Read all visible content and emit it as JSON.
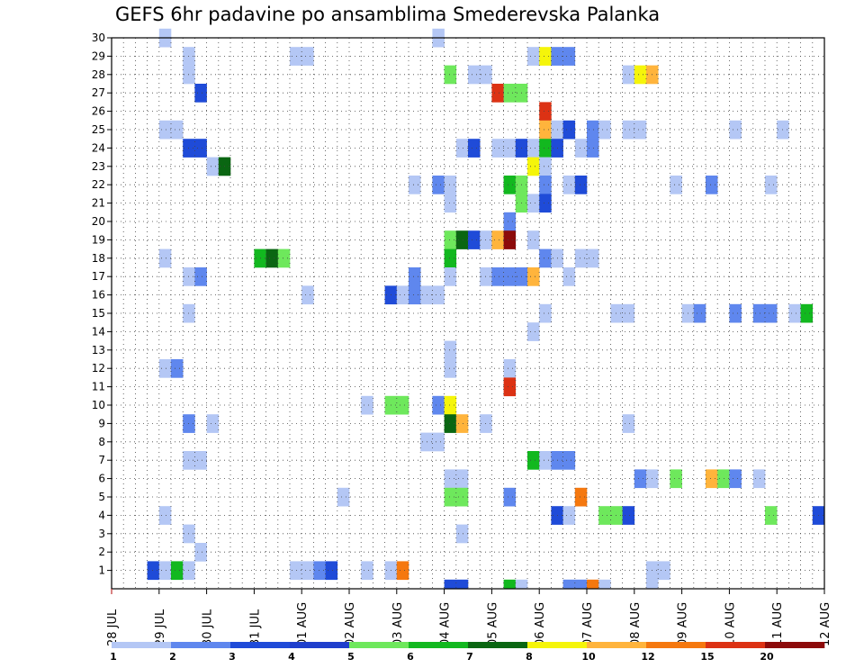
{
  "chart_data": {
    "type": "heatmap",
    "title": "GEFS 6hr padavine po ansamblima Smederevska Palanka",
    "x_ticks": [
      "28 JUL",
      "29 JUL",
      "30 JUL",
      "31 JUL",
      "01 AUG",
      "02 AUG",
      "03 AUG",
      "04 AUG",
      "05 AUG",
      "06 AUG",
      "07 AUG",
      "08 AUG",
      "09 AUG",
      "10 AUG",
      "11 AUG",
      "12 AUG"
    ],
    "y_ticks": [
      1,
      2,
      3,
      4,
      5,
      6,
      7,
      8,
      9,
      10,
      11,
      12,
      13,
      14,
      15,
      16,
      17,
      18,
      19,
      20,
      21,
      22,
      23,
      24,
      25,
      26,
      27,
      28,
      29,
      30
    ],
    "ylim": [
      0,
      30
    ],
    "x_steps": 60,
    "grid": true,
    "colorbar": {
      "labels": [
        "1",
        "2",
        "3",
        "4",
        "5",
        "6",
        "7",
        "8",
        "10",
        "12",
        "15",
        "20"
      ],
      "levels": [
        1,
        2,
        3,
        4,
        5,
        6,
        7,
        8,
        10,
        12,
        15,
        20
      ],
      "colors": [
        "#b4c7f5",
        "#5f87ee",
        "#1f4bd8",
        "#1f3fcc",
        "#6ee85c",
        "#12b81f",
        "#0a6612",
        "#f5f50a",
        "#ffb43c",
        "#f5780f",
        "#dc3214",
        "#8c0a0a"
      ]
    },
    "cells": [
      [
        4,
        30,
        1
      ],
      [
        27,
        30,
        1
      ],
      [
        6,
        29,
        1
      ],
      [
        15,
        29,
        1
      ],
      [
        16,
        29,
        1
      ],
      [
        35,
        29,
        1
      ],
      [
        36,
        29,
        8
      ],
      [
        37,
        29,
        2
      ],
      [
        38,
        29,
        2
      ],
      [
        6,
        28,
        1
      ],
      [
        28,
        28,
        5
      ],
      [
        30,
        28,
        1
      ],
      [
        31,
        28,
        1
      ],
      [
        43,
        28,
        1
      ],
      [
        44,
        28,
        8
      ],
      [
        45,
        28,
        10
      ],
      [
        7,
        27,
        3
      ],
      [
        32,
        27,
        15
      ],
      [
        33,
        27,
        5
      ],
      [
        34,
        27,
        5
      ],
      [
        36,
        26,
        15
      ],
      [
        4,
        25,
        1
      ],
      [
        5,
        25,
        1
      ],
      [
        36,
        25,
        10
      ],
      [
        37,
        25,
        1
      ],
      [
        38,
        25,
        3
      ],
      [
        40,
        25,
        2
      ],
      [
        41,
        25,
        1
      ],
      [
        43,
        25,
        1
      ],
      [
        44,
        25,
        1
      ],
      [
        52,
        25,
        1
      ],
      [
        56,
        25,
        1
      ],
      [
        6,
        24,
        3
      ],
      [
        7,
        24,
        3
      ],
      [
        29,
        24,
        1
      ],
      [
        30,
        24,
        3
      ],
      [
        32,
        24,
        1
      ],
      [
        33,
        24,
        1
      ],
      [
        34,
        24,
        3
      ],
      [
        35,
        24,
        1
      ],
      [
        36,
        24,
        6
      ],
      [
        37,
        24,
        3
      ],
      [
        39,
        24,
        1
      ],
      [
        40,
        24,
        2
      ],
      [
        8,
        23,
        1
      ],
      [
        9,
        23,
        7
      ],
      [
        35,
        23,
        8
      ],
      [
        36,
        23,
        1
      ],
      [
        25,
        22,
        1
      ],
      [
        27,
        22,
        2
      ],
      [
        28,
        22,
        1
      ],
      [
        33,
        22,
        6
      ],
      [
        34,
        22,
        5
      ],
      [
        36,
        22,
        2
      ],
      [
        38,
        22,
        1
      ],
      [
        39,
        22,
        3
      ],
      [
        47,
        22,
        1
      ],
      [
        50,
        22,
        2
      ],
      [
        55,
        22,
        1
      ],
      [
        28,
        21,
        1
      ],
      [
        34,
        21,
        5
      ],
      [
        35,
        21,
        1
      ],
      [
        36,
        21,
        3
      ],
      [
        33,
        20,
        2
      ],
      [
        28,
        19,
        5
      ],
      [
        29,
        19,
        7
      ],
      [
        30,
        19,
        3
      ],
      [
        31,
        19,
        1
      ],
      [
        32,
        19,
        10
      ],
      [
        33,
        19,
        20
      ],
      [
        35,
        19,
        1
      ],
      [
        4,
        18,
        1
      ],
      [
        12,
        18,
        6
      ],
      [
        13,
        18,
        7
      ],
      [
        14,
        18,
        5
      ],
      [
        28,
        18,
        6
      ],
      [
        36,
        18,
        2
      ],
      [
        37,
        18,
        1
      ],
      [
        39,
        18,
        1
      ],
      [
        40,
        18,
        1
      ],
      [
        6,
        17,
        1
      ],
      [
        7,
        17,
        2
      ],
      [
        25,
        17,
        2
      ],
      [
        28,
        17,
        1
      ],
      [
        31,
        17,
        1
      ],
      [
        32,
        17,
        2
      ],
      [
        33,
        17,
        2
      ],
      [
        34,
        17,
        2
      ],
      [
        35,
        17,
        10
      ],
      [
        38,
        17,
        1
      ],
      [
        16,
        16,
        1
      ],
      [
        23,
        16,
        3
      ],
      [
        24,
        16,
        1
      ],
      [
        25,
        16,
        2
      ],
      [
        26,
        16,
        1
      ],
      [
        27,
        16,
        1
      ],
      [
        6,
        15,
        1
      ],
      [
        36,
        15,
        1
      ],
      [
        42,
        15,
        1
      ],
      [
        43,
        15,
        1
      ],
      [
        48,
        15,
        1
      ],
      [
        49,
        15,
        2
      ],
      [
        52,
        15,
        2
      ],
      [
        54,
        15,
        2
      ],
      [
        55,
        15,
        2
      ],
      [
        57,
        15,
        1
      ],
      [
        58,
        15,
        6
      ],
      [
        35,
        14,
        1
      ],
      [
        28,
        13,
        1
      ],
      [
        4,
        12,
        1
      ],
      [
        5,
        12,
        2
      ],
      [
        28,
        12,
        1
      ],
      [
        33,
        12,
        1
      ],
      [
        33,
        11,
        15
      ],
      [
        21,
        10,
        1
      ],
      [
        23,
        10,
        5
      ],
      [
        24,
        10,
        5
      ],
      [
        27,
        10,
        2
      ],
      [
        28,
        10,
        8
      ],
      [
        6,
        9,
        2
      ],
      [
        8,
        9,
        1
      ],
      [
        28,
        9,
        7
      ],
      [
        29,
        9,
        10
      ],
      [
        31,
        9,
        1
      ],
      [
        43,
        9,
        1
      ],
      [
        26,
        8,
        1
      ],
      [
        27,
        8,
        1
      ],
      [
        6,
        7,
        1
      ],
      [
        7,
        7,
        1
      ],
      [
        35,
        7,
        6
      ],
      [
        36,
        7,
        1
      ],
      [
        37,
        7,
        2
      ],
      [
        38,
        7,
        2
      ],
      [
        28,
        6,
        1
      ],
      [
        29,
        6,
        1
      ],
      [
        44,
        6,
        2
      ],
      [
        45,
        6,
        1
      ],
      [
        47,
        6,
        5
      ],
      [
        50,
        6,
        10
      ],
      [
        51,
        6,
        5
      ],
      [
        52,
        6,
        2
      ],
      [
        54,
        6,
        1
      ],
      [
        19,
        5,
        1
      ],
      [
        28,
        5,
        5
      ],
      [
        29,
        5,
        5
      ],
      [
        33,
        5,
        2
      ],
      [
        39,
        5,
        12
      ],
      [
        4,
        4,
        1
      ],
      [
        37,
        4,
        3
      ],
      [
        38,
        4,
        1
      ],
      [
        41,
        4,
        5
      ],
      [
        42,
        4,
        5
      ],
      [
        43,
        4,
        3
      ],
      [
        55,
        4,
        5
      ],
      [
        59,
        4,
        3
      ],
      [
        6,
        3,
        1
      ],
      [
        29,
        3,
        1
      ],
      [
        7,
        2,
        1
      ],
      [
        3,
        1,
        3
      ],
      [
        4,
        1,
        1
      ],
      [
        5,
        1,
        6
      ],
      [
        6,
        1,
        1
      ],
      [
        15,
        1,
        1
      ],
      [
        16,
        1,
        1
      ],
      [
        17,
        1,
        2
      ],
      [
        18,
        1,
        3
      ],
      [
        21,
        1,
        1
      ],
      [
        23,
        1,
        1
      ],
      [
        24,
        1,
        12
      ],
      [
        45,
        1,
        1
      ],
      [
        46,
        1,
        1
      ],
      [
        28,
        0,
        3
      ],
      [
        29,
        0,
        3
      ],
      [
        33,
        0,
        6
      ],
      [
        34,
        0,
        1
      ],
      [
        38,
        0,
        2
      ],
      [
        39,
        0,
        2
      ],
      [
        40,
        0,
        12
      ],
      [
        41,
        0,
        1
      ],
      [
        45,
        0,
        1
      ]
    ]
  }
}
